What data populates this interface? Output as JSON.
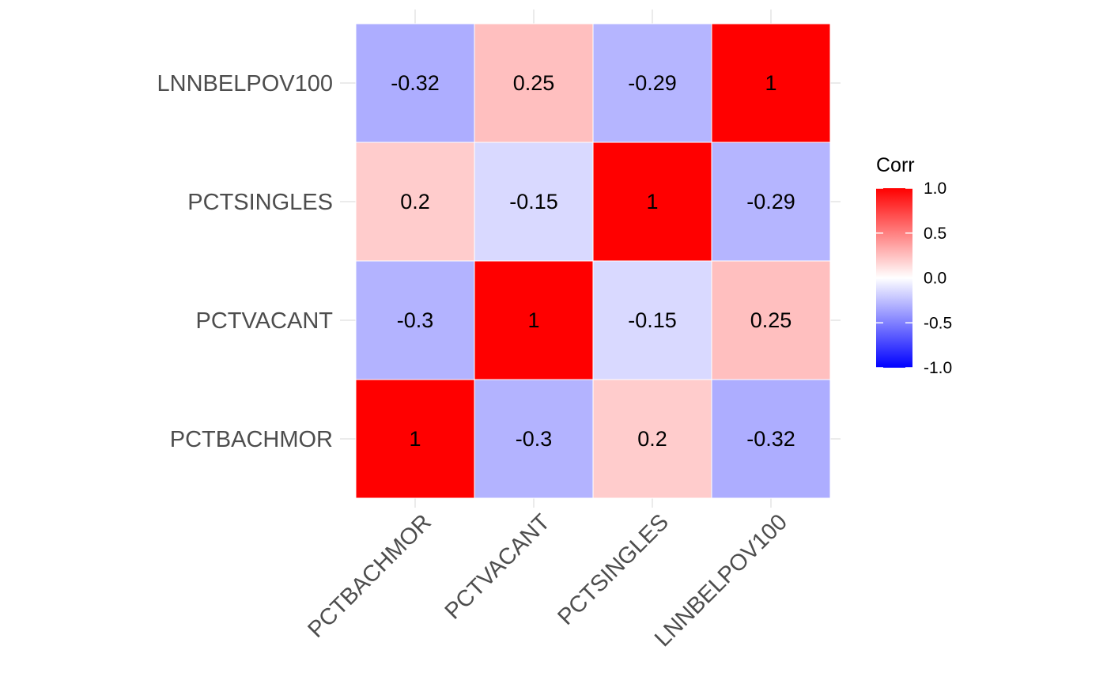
{
  "chart_data": {
    "type": "heatmap",
    "x_categories": [
      "PCTBACHMOR",
      "PCTVACANT",
      "PCTSINGLES",
      "LNNBELPOV100"
    ],
    "y_categories": [
      "PCTBACHMOR",
      "PCTVACANT",
      "PCTSINGLES",
      "LNNBELPOV100"
    ],
    "cells": [
      {
        "x": "PCTBACHMOR",
        "y": "PCTBACHMOR",
        "value": 1,
        "label": "1"
      },
      {
        "x": "PCTVACANT",
        "y": "PCTBACHMOR",
        "value": -0.3,
        "label": "-0.3"
      },
      {
        "x": "PCTSINGLES",
        "y": "PCTBACHMOR",
        "value": 0.2,
        "label": "0.2"
      },
      {
        "x": "LNNBELPOV100",
        "y": "PCTBACHMOR",
        "value": -0.32,
        "label": "-0.32"
      },
      {
        "x": "PCTBACHMOR",
        "y": "PCTVACANT",
        "value": -0.3,
        "label": "-0.3"
      },
      {
        "x": "PCTVACANT",
        "y": "PCTVACANT",
        "value": 1,
        "label": "1"
      },
      {
        "x": "PCTSINGLES",
        "y": "PCTVACANT",
        "value": -0.15,
        "label": "-0.15"
      },
      {
        "x": "LNNBELPOV100",
        "y": "PCTVACANT",
        "value": 0.25,
        "label": "0.25"
      },
      {
        "x": "PCTBACHMOR",
        "y": "PCTSINGLES",
        "value": 0.2,
        "label": "0.2"
      },
      {
        "x": "PCTVACANT",
        "y": "PCTSINGLES",
        "value": -0.15,
        "label": "-0.15"
      },
      {
        "x": "PCTSINGLES",
        "y": "PCTSINGLES",
        "value": 1,
        "label": "1"
      },
      {
        "x": "LNNBELPOV100",
        "y": "PCTSINGLES",
        "value": -0.29,
        "label": "-0.29"
      },
      {
        "x": "PCTBACHMOR",
        "y": "LNNBELPOV100",
        "value": -0.32,
        "label": "-0.32"
      },
      {
        "x": "PCTVACANT",
        "y": "LNNBELPOV100",
        "value": 0.25,
        "label": "0.25"
      },
      {
        "x": "PCTSINGLES",
        "y": "LNNBELPOV100",
        "value": -0.29,
        "label": "-0.29"
      },
      {
        "x": "LNNBELPOV100",
        "y": "LNNBELPOV100",
        "value": 1,
        "label": "1"
      }
    ],
    "legend": {
      "title": "Corr",
      "range": [
        -1,
        1
      ],
      "ticks": [
        {
          "value": 1,
          "label": "1.0"
        },
        {
          "value": 0.5,
          "label": "0.5"
        },
        {
          "value": 0,
          "label": "0.0"
        },
        {
          "value": -0.5,
          "label": "-0.5"
        },
        {
          "value": -1,
          "label": "-1.0"
        }
      ],
      "placement": "right"
    },
    "colors": {
      "low": "#0000ff",
      "mid": "#ffffff",
      "high": "#ff0000",
      "cell_border": "#ffffff",
      "grid": "#ebebeb",
      "tick_text": "#4d4d4d"
    },
    "grid": true,
    "title": "",
    "xlabel": "",
    "ylabel": ""
  }
}
